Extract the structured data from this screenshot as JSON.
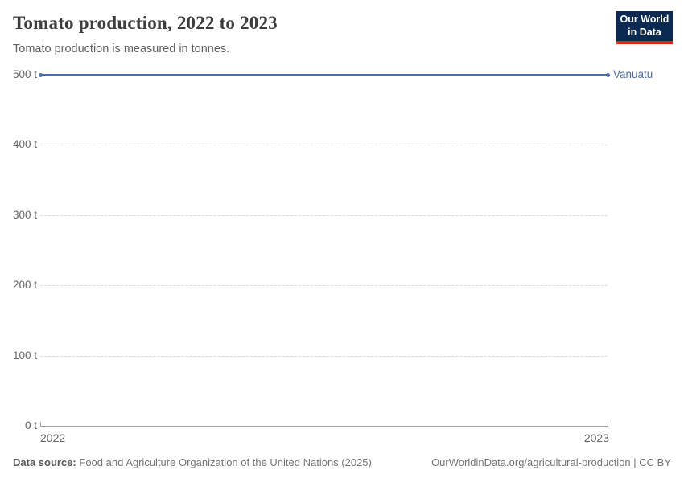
{
  "header": {
    "title": "Tomato production, 2022 to 2023",
    "subtitle": "Tomato production is measured in tonnes.",
    "logo": {
      "line1": "Our World",
      "line2": "in Data",
      "bg_color": "#0b2a51",
      "accent_color": "#dc2a1c"
    }
  },
  "chart_data": {
    "type": "line",
    "title": "Tomato production, 2022 to 2023",
    "subtitle": "Tomato production is measured in tonnes.",
    "x": [
      2022,
      2023
    ],
    "x_tick_labels": [
      "2022",
      "2023"
    ],
    "series": [
      {
        "name": "Vanuatu",
        "values": [
          500,
          500
        ],
        "color": "#4C6FA5"
      }
    ],
    "ylim": [
      0,
      500
    ],
    "yticks": [
      {
        "value": 0,
        "label": "0 t"
      },
      {
        "value": 100,
        "label": "100 t"
      },
      {
        "value": 200,
        "label": "200 t"
      },
      {
        "value": 300,
        "label": "300 t"
      },
      {
        "value": 400,
        "label": "400 t"
      },
      {
        "value": 500,
        "label": "500 t"
      }
    ],
    "grid": "horizontal-dashed",
    "legend_position": "right-of-line-end",
    "gridline_color": "#dcdcdc",
    "axis_color": "#a1a1a1",
    "tick_label_color": "#666666"
  },
  "footer": {
    "datasource_label": "Data source:",
    "datasource_text": "Food and Agriculture Organization of the United Nations (2025)",
    "link_text": "OurWorldinData.org/agricultural-production | CC BY"
  }
}
